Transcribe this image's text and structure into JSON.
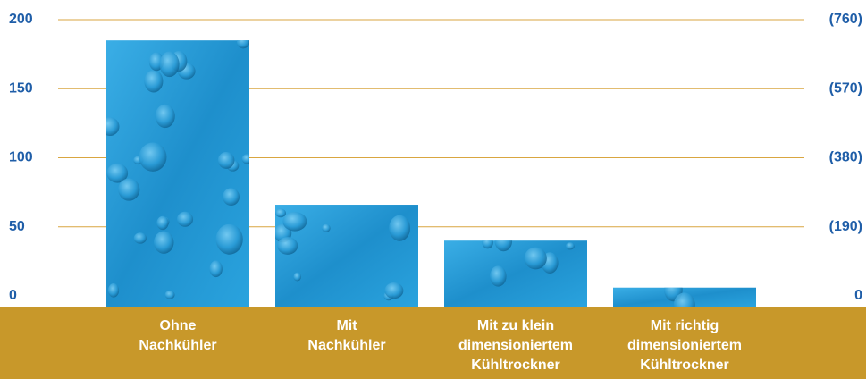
{
  "chart_data": {
    "type": "bar",
    "categories": [
      [
        "Ohne",
        "Nachkühler"
      ],
      [
        "Mit",
        "Nachkühler"
      ],
      [
        "Mit zu klein",
        "dimensioniertem",
        "Kühltrockner"
      ],
      [
        "Mit richtig",
        "dimensioniertem",
        "Kühltrockner"
      ]
    ],
    "values": [
      185,
      66,
      40,
      6
    ],
    "color": "#2a9bd6",
    "ylim": [
      0,
      200
    ],
    "yticks": [
      0,
      50,
      100,
      150,
      200
    ],
    "y2lim": [
      0,
      760
    ],
    "y2ticks": [
      0,
      {
        "value": 190,
        "label": "(190)"
      },
      {
        "value": 380,
        "label": "(380)"
      },
      {
        "value": 570,
        "label": "(570)"
      },
      {
        "value": 760,
        "label": "(760)"
      }
    ],
    "grid": true
  }
}
